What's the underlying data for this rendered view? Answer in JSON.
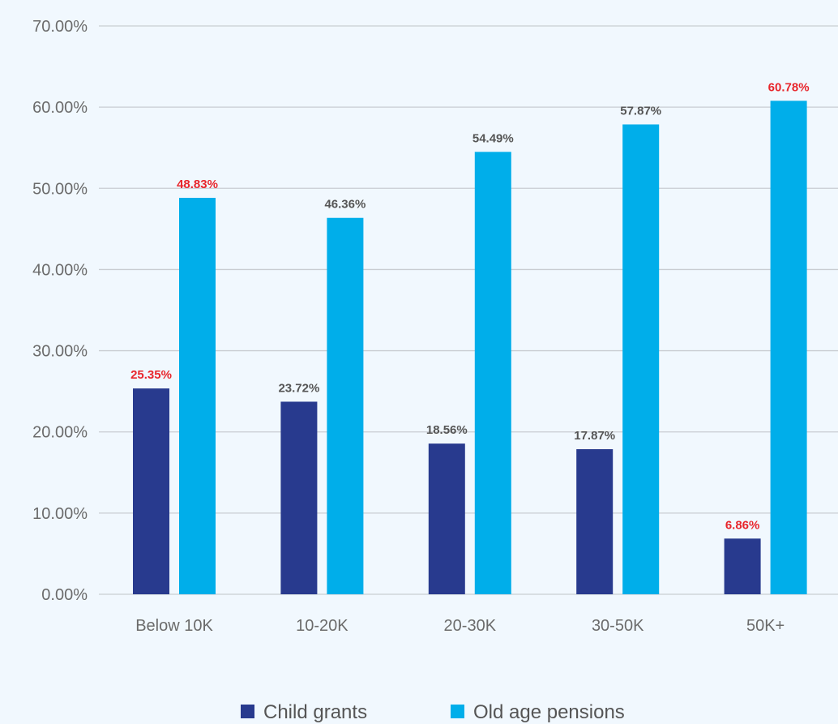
{
  "chart_data": {
    "type": "bar",
    "categories": [
      "Below 10K",
      "10-20K",
      "20-30K",
      "30-50K",
      "50K+"
    ],
    "series": [
      {
        "name": "Child grants",
        "values": [
          25.35,
          23.72,
          18.56,
          17.87,
          6.86
        ],
        "labels": [
          "25.35%",
          "23.72%",
          "18.56%",
          "17.87%",
          "6.86%"
        ],
        "label_colors": [
          "#e8262c",
          "#555555",
          "#555555",
          "#555555",
          "#e8262c"
        ],
        "color": "#283a8e"
      },
      {
        "name": "Old age pensions",
        "values": [
          48.83,
          46.36,
          54.49,
          57.87,
          60.78
        ],
        "labels": [
          "48.83%",
          "46.36%",
          "54.49%",
          "57.87%",
          "60.78%"
        ],
        "label_colors": [
          "#e8262c",
          "#555555",
          "#555555",
          "#555555",
          "#e8262c"
        ],
        "color": "#00aeea"
      }
    ],
    "yticks": [
      "0.00%",
      "10.00%",
      "20.00%",
      "30.00%",
      "40.00%",
      "50.00%",
      "60.00%",
      "70.00%"
    ],
    "ylim": [
      0,
      70
    ],
    "grid": true,
    "legend_position": "bottom-center",
    "title": "",
    "xlabel": "",
    "ylabel": ""
  },
  "colors": {
    "background": "#f1f8fe",
    "gridline": "#c9cdd2",
    "tick_text": "#6b6b6b",
    "highlight_label": "#e8262c",
    "normal_label": "#555555"
  }
}
